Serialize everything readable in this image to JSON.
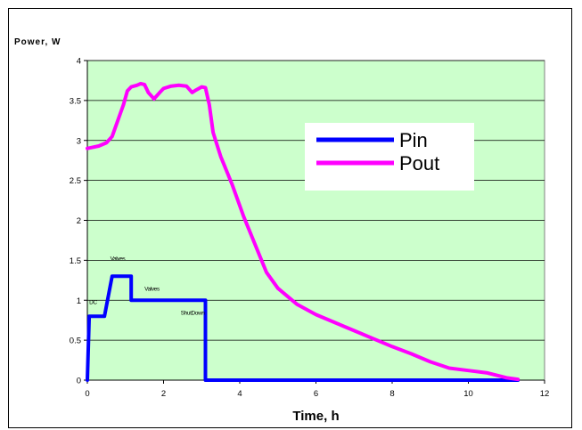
{
  "chart_data": {
    "type": "line",
    "title": "",
    "xlabel": "Time, h",
    "ylabel": "Power, W",
    "xlim": [
      0,
      12
    ],
    "ylim": [
      0,
      4
    ],
    "x_ticks": [
      "0",
      "2",
      "4",
      "6",
      "8",
      "10",
      "12"
    ],
    "y_ticks": [
      "0",
      "0.5",
      "1",
      "1.5",
      "2",
      "2.5",
      "3",
      "3.5",
      "4"
    ],
    "grid": "horizontal",
    "legend_position": "right",
    "plot_background": "#ccffcc",
    "series": [
      {
        "name": "Pin",
        "color": "#0000ff",
        "points": [
          [
            0,
            0
          ],
          [
            0.05,
            0.8
          ],
          [
            0.45,
            0.8
          ],
          [
            0.65,
            1.3
          ],
          [
            1.15,
            1.3
          ],
          [
            1.15,
            1.0
          ],
          [
            3.1,
            1.0
          ],
          [
            3.1,
            0
          ],
          [
            11.3,
            0
          ]
        ]
      },
      {
        "name": "Pout",
        "color": "#ff00ff",
        "points": [
          [
            0,
            2.9
          ],
          [
            0.1,
            2.91
          ],
          [
            0.3,
            2.93
          ],
          [
            0.5,
            2.97
          ],
          [
            0.65,
            3.05
          ],
          [
            0.8,
            3.25
          ],
          [
            0.95,
            3.45
          ],
          [
            1.05,
            3.62
          ],
          [
            1.15,
            3.67
          ],
          [
            1.3,
            3.69
          ],
          [
            1.4,
            3.71
          ],
          [
            1.5,
            3.7
          ],
          [
            1.6,
            3.6
          ],
          [
            1.75,
            3.52
          ],
          [
            1.9,
            3.6
          ],
          [
            2.0,
            3.65
          ],
          [
            2.2,
            3.68
          ],
          [
            2.4,
            3.69
          ],
          [
            2.6,
            3.68
          ],
          [
            2.75,
            3.6
          ],
          [
            2.85,
            3.63
          ],
          [
            3.0,
            3.67
          ],
          [
            3.1,
            3.66
          ],
          [
            3.2,
            3.45
          ],
          [
            3.3,
            3.1
          ],
          [
            3.5,
            2.8
          ],
          [
            3.8,
            2.45
          ],
          [
            4.1,
            2.05
          ],
          [
            4.4,
            1.7
          ],
          [
            4.7,
            1.35
          ],
          [
            5.0,
            1.15
          ],
          [
            5.5,
            0.95
          ],
          [
            6.0,
            0.82
          ],
          [
            6.5,
            0.72
          ],
          [
            7.0,
            0.62
          ],
          [
            7.5,
            0.52
          ],
          [
            8.0,
            0.42
          ],
          [
            8.5,
            0.33
          ],
          [
            9.0,
            0.23
          ],
          [
            9.5,
            0.15
          ],
          [
            10.0,
            0.12
          ],
          [
            10.5,
            0.09
          ],
          [
            11.0,
            0.03
          ],
          [
            11.3,
            0.01
          ]
        ]
      }
    ],
    "annotations": [
      {
        "text": "DC",
        "x": 0.05,
        "y": 0.95
      },
      {
        "text": "Valves",
        "x": 0.6,
        "y": 1.5
      },
      {
        "text": "Valves",
        "x": 1.5,
        "y": 1.12
      },
      {
        "text": "ShutDown",
        "x": 2.45,
        "y": 0.82
      }
    ]
  }
}
